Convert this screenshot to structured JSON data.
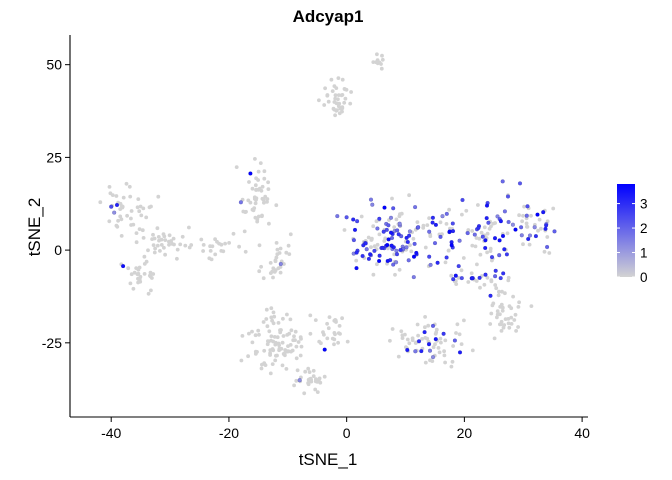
{
  "chart_data": {
    "type": "scatter",
    "title": "Adcyap1",
    "xlabel": "tSNE_1",
    "ylabel": "tSNE_2",
    "xlim": [
      -47,
      41
    ],
    "ylim": [
      -45,
      58
    ],
    "x_ticks": [
      -40,
      -20,
      0,
      20,
      40
    ],
    "x_tick_labels": [
      "-40",
      "-20",
      "0",
      "20",
      "40"
    ],
    "y_ticks": [
      -25,
      0,
      25,
      50
    ],
    "y_tick_labels": [
      "-25",
      "0",
      "25",
      "50"
    ],
    "grid": false,
    "legend": {
      "placement": "right",
      "type": "colorbar",
      "min": 0,
      "max": 3.8,
      "ticks": [
        0,
        1,
        2,
        3
      ],
      "tick_labels": [
        "0",
        "1",
        "2",
        "3"
      ],
      "low_color": "#d3d3d3",
      "high_color": "#0000ff"
    },
    "clusters": [
      {
        "cx": 5.5,
        "cy": 51,
        "sx": 1.0,
        "sy": 1.2,
        "n": 10
      },
      {
        "cx": -1.5,
        "cy": 41,
        "sx": 1.5,
        "sy": 3.5,
        "n": 40
      },
      {
        "cx": -37,
        "cy": 11,
        "sx": 3.0,
        "sy": 4.0,
        "n": 45
      },
      {
        "cx": -30,
        "cy": 2,
        "sx": 3.5,
        "sy": 3.0,
        "n": 35
      },
      {
        "cx": -22,
        "cy": 0,
        "sx": 2.5,
        "sy": 3.0,
        "n": 20
      },
      {
        "cx": -35,
        "cy": -7,
        "sx": 2.0,
        "sy": 3.0,
        "n": 30
      },
      {
        "cx": -15,
        "cy": 14,
        "sx": 2.0,
        "sy": 6.0,
        "n": 50
      },
      {
        "cx": -12,
        "cy": -3,
        "sx": 2.0,
        "sy": 5.0,
        "n": 30
      },
      {
        "cx": -12,
        "cy": -24,
        "sx": 3.5,
        "sy": 6.5,
        "n": 95
      },
      {
        "cx": -6,
        "cy": -35,
        "sx": 2.0,
        "sy": 2.5,
        "n": 30
      },
      {
        "cx": -2,
        "cy": -22,
        "sx": 2.5,
        "sy": 3.5,
        "n": 25
      },
      {
        "cx": 8,
        "cy": 3,
        "sx": 6.5,
        "sy": 7.0,
        "n": 150
      },
      {
        "cx": 23,
        "cy": 4,
        "sx": 5.0,
        "sy": 7.0,
        "n": 80
      },
      {
        "cx": 32,
        "cy": 7,
        "sx": 3.0,
        "sy": 5.0,
        "n": 40
      },
      {
        "cx": 14,
        "cy": -24,
        "sx": 4.5,
        "sy": 4.0,
        "n": 70
      },
      {
        "cx": 27,
        "cy": -17,
        "sx": 2.5,
        "sy": 6.0,
        "n": 40
      },
      {
        "cx": 22,
        "cy": -8,
        "sx": 4.0,
        "sy": 2.0,
        "n": 30
      }
    ]
  }
}
